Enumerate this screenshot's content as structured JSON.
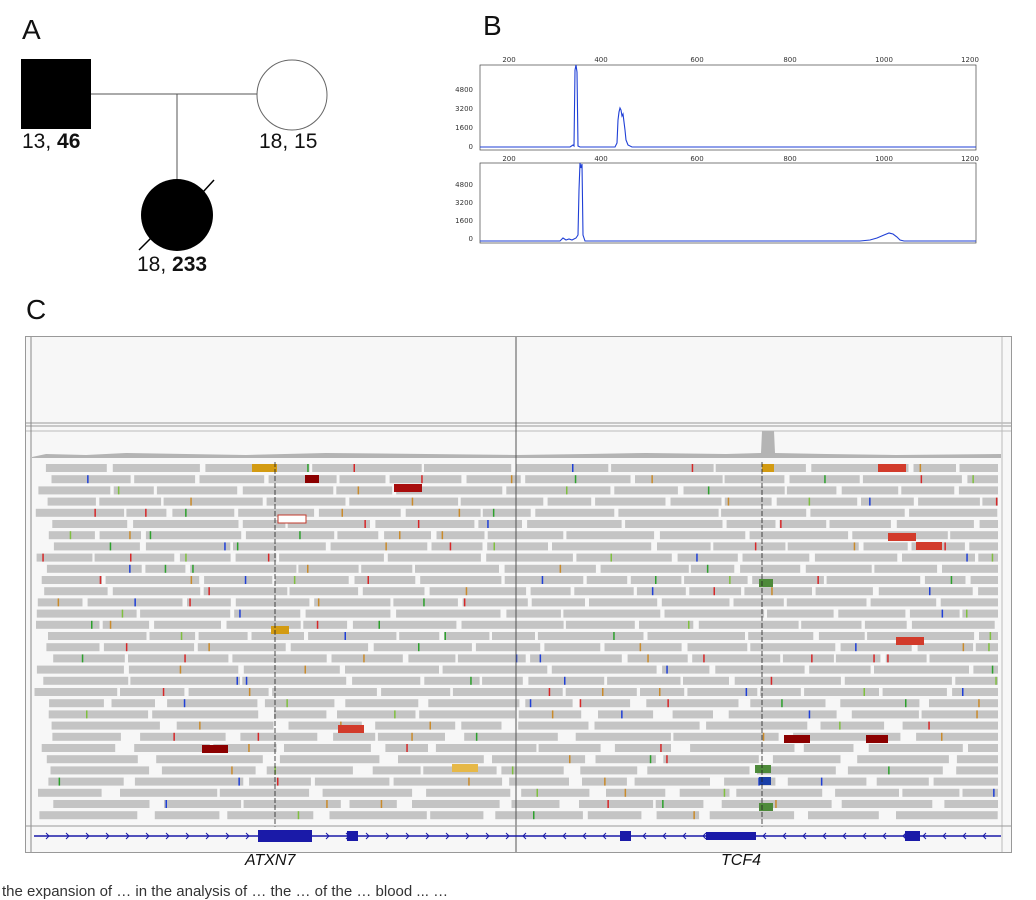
{
  "panels": {
    "a": "A",
    "b": "B",
    "c": "C"
  },
  "pedigree": {
    "father": {
      "allele1": "13",
      "allele2": "46"
    },
    "mother": {
      "allele1": "18",
      "allele2": "15"
    },
    "child": {
      "allele1": "18",
      "allele2": "233"
    }
  },
  "electropherogram": {
    "x_ticks": [
      "200",
      "400",
      "600",
      "800",
      "1000",
      "1200"
    ],
    "y_ticks": [
      "4800",
      "3200",
      "1600",
      "0"
    ],
    "trace_color": "#1f3fd6"
  },
  "igv": {
    "genes": [
      "ATXN7",
      "TCF4"
    ],
    "gene_color": "#1a1aa8"
  },
  "caption": "the expansion of … in the analysis of … the … of the … blood ... …"
}
